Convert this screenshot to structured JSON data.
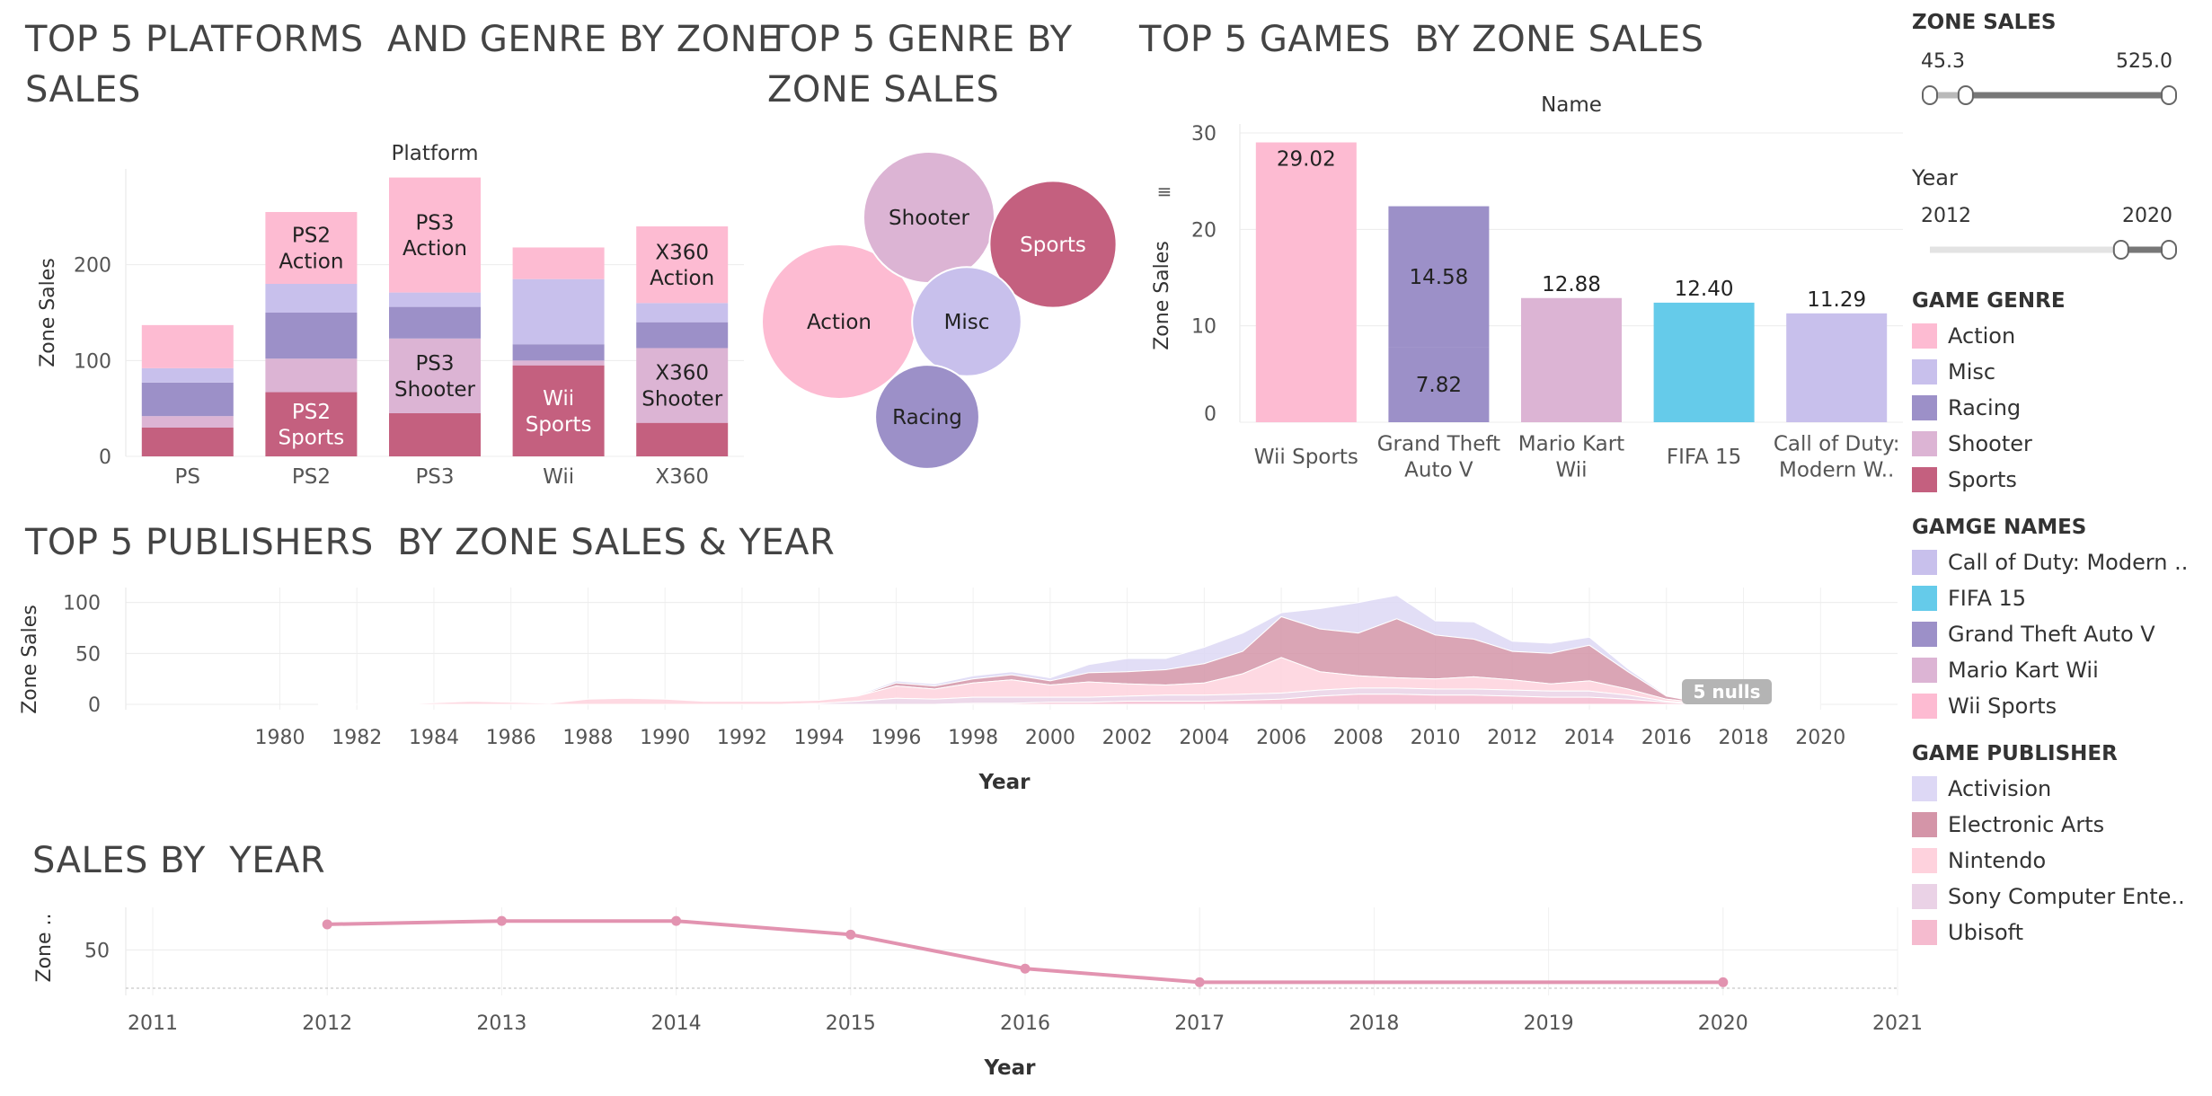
{
  "panels": {
    "platform": {
      "title": "TOP 5 PLATFORMS  AND GENRE BY ZONE\nSALES",
      "header": "Platform",
      "ylabel": "Zone Sales"
    },
    "genre_bubbles": {
      "title": "TOP 5 GENRE BY\nZONE SALES"
    },
    "games": {
      "title": "TOP 5 GAMES  BY ZONE SALES",
      "header": "Name",
      "ylabel": "Zone Sales"
    },
    "publishers": {
      "title": "TOP 5 PUBLISHERS  BY ZONE SALES & YEAR",
      "ylabel": "Zone Sales",
      "xlabel": "Year",
      "nulls_badge": "5 nulls"
    },
    "sales_year": {
      "title": "SALES BY  YEAR",
      "ylabel": "Zone ..",
      "xlabel": "Year"
    }
  },
  "colors": {
    "Action": "#fdbbd2",
    "Misc": "#c8c0ec",
    "Racing": "#9c90c8",
    "Shooter": "#dcb4d4",
    "Sports": "#c4607f",
    "FIFA 15": "#65cbea",
    "Activision": "#ddd8f5",
    "Electronic Arts": "#d495a8",
    "Nintendo": "#fed2dd",
    "Sony Computer Entertainment": "#ead2e6",
    "Ubisoft": "#f5bbcf",
    "line": "#e293b0"
  },
  "chart_data": [
    {
      "id": "platform_genre",
      "type": "bar",
      "stacked": true,
      "categories": [
        "PS",
        "PS2",
        "PS3",
        "Wii",
        "X360"
      ],
      "series": [
        {
          "name": "Sports",
          "values": [
            30,
            67,
            45,
            95,
            35
          ]
        },
        {
          "name": "Shooter",
          "values": [
            12,
            35,
            78,
            5,
            78
          ]
        },
        {
          "name": "Racing",
          "values": [
            35,
            48,
            33,
            17,
            27
          ]
        },
        {
          "name": "Misc",
          "values": [
            15,
            30,
            15,
            68,
            20
          ]
        },
        {
          "name": "Action",
          "values": [
            45,
            75,
            120,
            33,
            80
          ]
        }
      ],
      "labels": [
        {
          "cat": "PS2",
          "series": "Action",
          "text": "PS2\nAction"
        },
        {
          "cat": "PS2",
          "series": "Sports",
          "text": "PS2\nSports"
        },
        {
          "cat": "PS3",
          "series": "Action",
          "text": "PS3\nAction"
        },
        {
          "cat": "PS3",
          "series": "Shooter",
          "text": "PS3\nShooter"
        },
        {
          "cat": "Wii",
          "series": "Sports",
          "text": "Wii\nSports"
        },
        {
          "cat": "X360",
          "series": "Action",
          "text": "X360\nAction"
        },
        {
          "cat": "X360",
          "series": "Shooter",
          "text": "X360\nShooter"
        }
      ],
      "xlabel": "",
      "ylabel": "Zone Sales",
      "yticks": [
        0,
        100,
        200
      ],
      "ylim": [
        0,
        300
      ]
    },
    {
      "id": "genre_bubbles",
      "type": "bubble",
      "values": [
        {
          "name": "Action",
          "size": 430
        },
        {
          "name": "Shooter",
          "size": 310
        },
        {
          "name": "Sports",
          "size": 290
        },
        {
          "name": "Misc",
          "size": 215
        },
        {
          "name": "Racing",
          "size": 195
        }
      ]
    },
    {
      "id": "top_games",
      "type": "bar",
      "categories": [
        "Wii Sports",
        "Grand Theft\nAuto V",
        "Mario Kart\nWii",
        "FIFA 15",
        "Call of Duty:\nModern W.."
      ],
      "values": [
        29.02,
        22.4,
        12.88,
        12.4,
        11.29
      ],
      "segments": [
        {
          "name": "Wii Sports",
          "values": [
            29.02
          ]
        },
        {
          "name": "Grand Theft Auto V",
          "values": [
            7.82,
            14.58
          ]
        },
        {
          "name": "Mario Kart Wii",
          "values": [
            12.88
          ]
        },
        {
          "name": "FIFA 15",
          "values": [
            12.4
          ]
        },
        {
          "name": "Call of Duty: Modern ..",
          "values": [
            11.29
          ]
        }
      ],
      "labels": [
        "29.02",
        "7.82",
        "14.58",
        "12.88",
        "12.40",
        "11.29"
      ],
      "xlabel": "",
      "ylabel": "Zone Sales",
      "yticks": [
        0,
        10,
        20,
        30
      ],
      "ylim": [
        0,
        30
      ]
    },
    {
      "id": "publishers_area",
      "type": "area",
      "stacked": true,
      "x": [
        1981,
        1983,
        1985,
        1987,
        1988,
        1989,
        1990,
        1991,
        1992,
        1993,
        1994,
        1995,
        1996,
        1997,
        1998,
        1999,
        2000,
        2001,
        2002,
        2003,
        2004,
        2005,
        2006,
        2007,
        2008,
        2009,
        2010,
        2011,
        2012,
        2013,
        2014,
        2015,
        2016,
        2017,
        2018,
        2019,
        2020
      ],
      "series": [
        {
          "name": "Ubisoft",
          "values": [
            0,
            0,
            0,
            0,
            0,
            0,
            0,
            0,
            0,
            0,
            0,
            0,
            0,
            0,
            1,
            1,
            2,
            2,
            3,
            3,
            3,
            4,
            5,
            8,
            10,
            10,
            9,
            9,
            8,
            7,
            7,
            5,
            2,
            0,
            0,
            0,
            0
          ]
        },
        {
          "name": "Sony Computer Entertainment",
          "values": [
            0,
            0,
            0,
            0,
            0,
            0,
            0,
            0,
            0,
            0,
            1,
            3,
            6,
            5,
            6,
            6,
            5,
            5,
            5,
            6,
            6,
            6,
            6,
            6,
            6,
            6,
            6,
            6,
            6,
            6,
            6,
            4,
            1,
            0,
            0,
            0,
            0
          ]
        },
        {
          "name": "Nintendo",
          "values": [
            0,
            0,
            3,
            1,
            5,
            6,
            5,
            3,
            3,
            3,
            3,
            5,
            12,
            10,
            14,
            17,
            12,
            15,
            12,
            10,
            12,
            20,
            35,
            18,
            12,
            10,
            10,
            12,
            10,
            7,
            10,
            6,
            2,
            1,
            1,
            0,
            0
          ]
        },
        {
          "name": "Electronic Arts",
          "values": [
            0,
            0,
            0,
            0,
            0,
            0,
            0,
            0,
            0,
            0,
            0,
            0,
            3,
            3,
            4,
            5,
            4,
            9,
            12,
            15,
            19,
            22,
            40,
            42,
            42,
            58,
            43,
            37,
            28,
            30,
            35,
            17,
            3,
            0,
            0,
            0,
            0
          ]
        },
        {
          "name": "Activision",
          "values": [
            0,
            0,
            0,
            0,
            0,
            0,
            0,
            0,
            0,
            0,
            0,
            1,
            2,
            2,
            3,
            3,
            3,
            8,
            13,
            11,
            16,
            18,
            4,
            20,
            30,
            23,
            14,
            17,
            10,
            10,
            8,
            3,
            1,
            0,
            0,
            0,
            0
          ]
        }
      ],
      "xlabel": "Year",
      "ylabel": "Zone Sales",
      "xticks": [
        1980,
        1982,
        1984,
        1986,
        1988,
        1990,
        1992,
        1994,
        1996,
        1998,
        2000,
        2002,
        2004,
        2006,
        2008,
        2010,
        2012,
        2014,
        2016,
        2018,
        2020
      ],
      "yticks": [
        0,
        50,
        100
      ],
      "xlim": [
        1976,
        2022
      ],
      "ylim": [
        0,
        120
      ]
    },
    {
      "id": "sales_by_year",
      "type": "line",
      "x": [
        2012,
        2013,
        2014,
        2015,
        2016,
        2017,
        2020
      ],
      "values": [
        80,
        84,
        84,
        68,
        28,
        12,
        12
      ],
      "xlabel": "Year",
      "ylabel": "Zone ..",
      "xticks": [
        2011,
        2012,
        2013,
        2014,
        2015,
        2016,
        2017,
        2018,
        2019,
        2020,
        2021
      ],
      "yticks": [
        50
      ],
      "xlim": [
        2011,
        2021
      ],
      "ylim": [
        5,
        100
      ]
    }
  ],
  "filters": {
    "zone_sales": {
      "title": "ZONE SALES",
      "min": "45.3",
      "max": "525.0",
      "range_low": 0.15,
      "range_high": 1.0
    },
    "year": {
      "title": "Year",
      "min": "2012",
      "max": "2020",
      "range_low": 0.8,
      "range_high": 1.0
    }
  },
  "legends": {
    "genre": {
      "title": "GAME  GENRE",
      "items": [
        "Action",
        "Misc",
        "Racing",
        "Shooter",
        "Sports"
      ]
    },
    "names": {
      "title": "GAMGE NAMES",
      "items": [
        "Call of Duty: Modern ..",
        "FIFA 15",
        "Grand Theft Auto V",
        "Mario Kart Wii",
        "Wii Sports"
      ]
    },
    "publisher": {
      "title": "GAME PUBLISHER",
      "items": [
        "Activision",
        "Electronic Arts",
        "Nintendo",
        "Sony Computer Ente..",
        "Ubisoft"
      ]
    }
  }
}
